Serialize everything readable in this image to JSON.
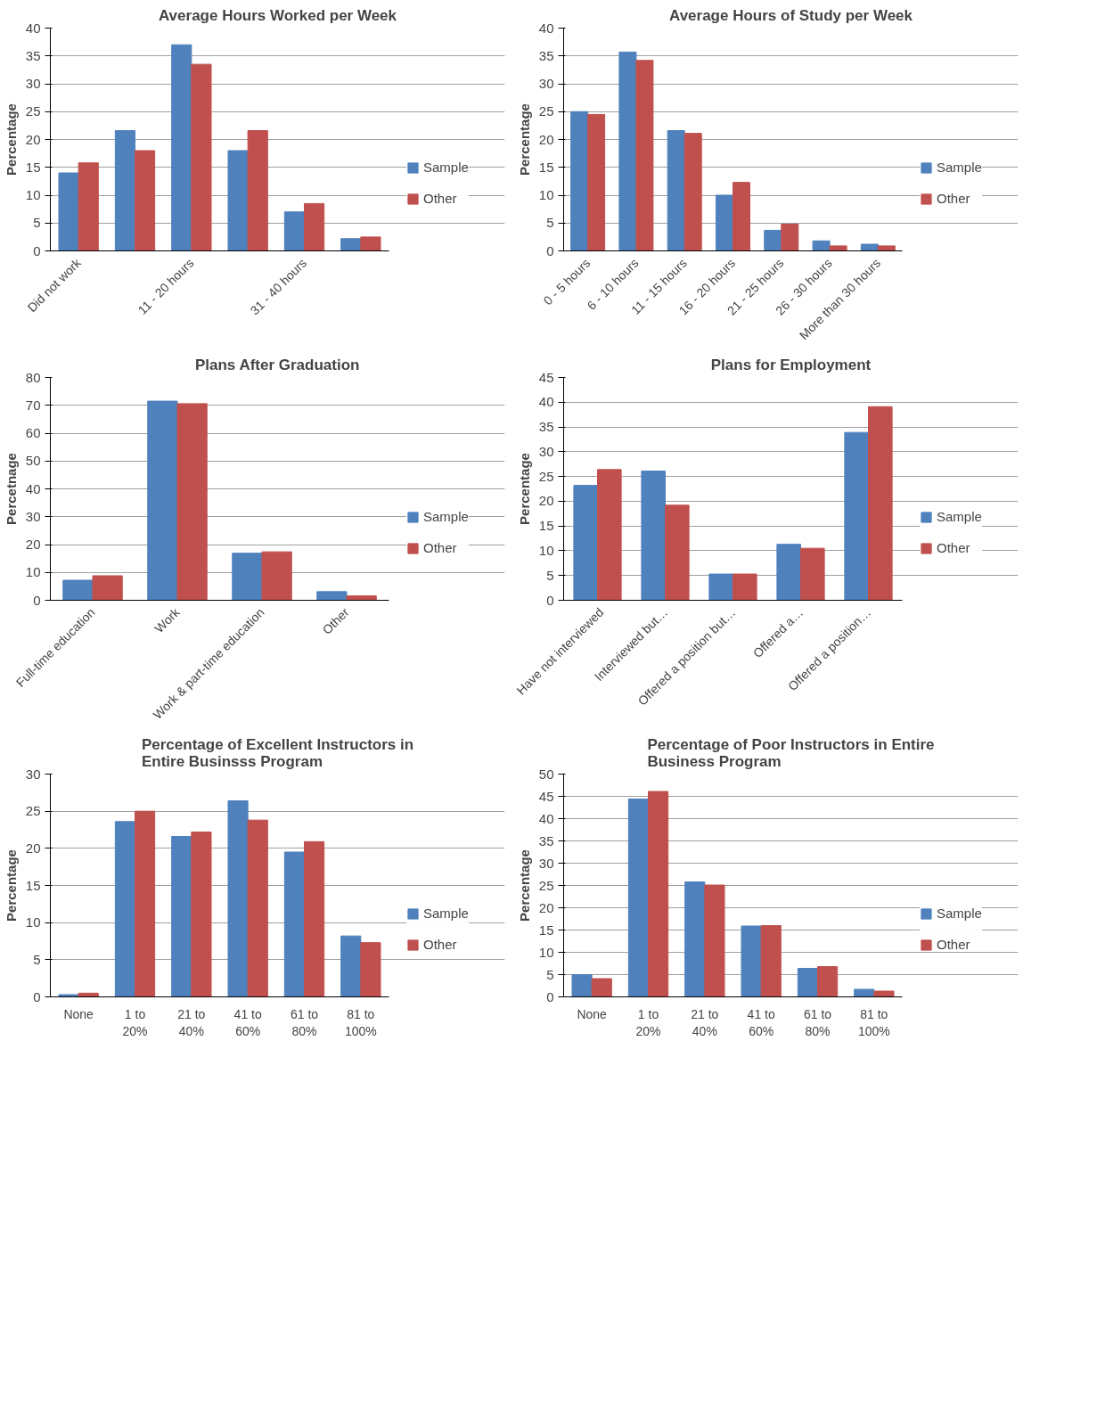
{
  "chart_data": [
    {
      "type": "bar",
      "title": "Average Hours Worked per Week",
      "ylabel": "Percentage",
      "categories": [
        "Did not work",
        null,
        "11 - 20 hours",
        null,
        "31 - 40 hours",
        null
      ],
      "series": [
        {
          "name": "Sample",
          "color": "#4f81bd",
          "values": [
            14,
            21.6,
            37,
            18,
            7,
            2.2
          ]
        },
        {
          "name": "Other",
          "color": "#c0504d",
          "values": [
            15.8,
            18,
            33.5,
            21.6,
            8.5,
            2.5
          ]
        }
      ],
      "ylim": [
        0,
        40
      ],
      "yticks": [
        0,
        5,
        10,
        15,
        20,
        25,
        30,
        35,
        40
      ],
      "grid": "y",
      "legend": "right"
    },
    {
      "type": "bar",
      "title": "Average Hours of Study per Week",
      "ylabel": "Percentage",
      "categories": [
        "0 - 5 hours",
        "6 - 10 hours",
        "11 - 15 hours",
        "16 - 20 hours",
        "21 - 25 hours",
        "26 - 30 hours",
        "More than 30 hours"
      ],
      "series": [
        {
          "name": "Sample",
          "color": "#4f81bd",
          "values": [
            25,
            35.7,
            21.6,
            10,
            3.7,
            1.8,
            1.2
          ]
        },
        {
          "name": "Other",
          "color": "#c0504d",
          "values": [
            24.5,
            34.2,
            21.1,
            12.3,
            4.8,
            0.9,
            0.9
          ]
        }
      ],
      "ylim": [
        0,
        40
      ],
      "yticks": [
        0,
        5,
        10,
        15,
        20,
        25,
        30,
        35,
        40
      ],
      "grid": "y",
      "legend": "right"
    },
    {
      "type": "bar",
      "title": "Plans After Graduation",
      "ylabel": "Percetnage",
      "categories": [
        "Full-time education",
        "Work",
        "Work & part-time education",
        "Other"
      ],
      "series": [
        {
          "name": "Sample",
          "color": "#4f81bd",
          "values": [
            7.2,
            71.5,
            16.9,
            3.1
          ]
        },
        {
          "name": "Other",
          "color": "#c0504d",
          "values": [
            8.8,
            70.6,
            17.4,
            1.6
          ]
        }
      ],
      "ylim": [
        0,
        80
      ],
      "yticks": [
        0,
        10,
        20,
        30,
        40,
        50,
        60,
        70,
        80
      ],
      "grid": "y",
      "legend": "right"
    },
    {
      "type": "bar",
      "title": "Plans for Employment",
      "ylabel": "Percentage",
      "categories": [
        "Have not interviewed",
        "Interviewed but…",
        "Offered a position but…",
        "Offered a…",
        "Offered a position…"
      ],
      "series": [
        {
          "name": "Sample",
          "color": "#4f81bd",
          "values": [
            23.2,
            26.1,
            5.3,
            11.3,
            33.9
          ]
        },
        {
          "name": "Other",
          "color": "#c0504d",
          "values": [
            26.4,
            19.2,
            5.3,
            10.5,
            39.1
          ]
        }
      ],
      "ylim": [
        0,
        45
      ],
      "yticks": [
        0,
        5,
        10,
        15,
        20,
        25,
        30,
        35,
        40,
        45
      ],
      "grid": "y",
      "legend": "right"
    },
    {
      "type": "bar",
      "title": "Percentage of Excellent Instructors in Entire Businsss Program",
      "ylabel": "Percentage",
      "categories": [
        "None",
        "1 to 20%",
        "21 to 40%",
        "41 to 60%",
        "61 to 80%",
        "81 to 100%"
      ],
      "series": [
        {
          "name": "Sample",
          "color": "#4f81bd",
          "values": [
            0.3,
            23.6,
            21.6,
            26.4,
            19.5,
            8.2
          ]
        },
        {
          "name": "Other",
          "color": "#c0504d",
          "values": [
            0.5,
            25,
            22.2,
            23.8,
            20.9,
            7.3
          ]
        }
      ],
      "ylim": [
        0,
        30
      ],
      "yticks": [
        0,
        5,
        10,
        15,
        20,
        25,
        30
      ],
      "grid": "y",
      "legend": "right"
    },
    {
      "type": "bar",
      "title": "Percentage of Poor Instructors in Entire Business Program",
      "ylabel": "Percentage",
      "categories": [
        "None",
        "1 to 20%",
        "21 to 40%",
        "41 to 60%",
        "61 to 80%",
        "81 to 100%"
      ],
      "series": [
        {
          "name": "Sample",
          "color": "#4f81bd",
          "values": [
            5,
            44.4,
            25.8,
            15.9,
            6.4,
            1.7
          ]
        },
        {
          "name": "Other",
          "color": "#c0504d",
          "values": [
            4.1,
            46.1,
            25.1,
            16,
            6.8,
            1.3
          ]
        }
      ],
      "ylim": [
        0,
        50
      ],
      "yticks": [
        0,
        5,
        10,
        15,
        20,
        25,
        30,
        35,
        40,
        45,
        50
      ],
      "grid": "y",
      "legend": "right"
    }
  ]
}
